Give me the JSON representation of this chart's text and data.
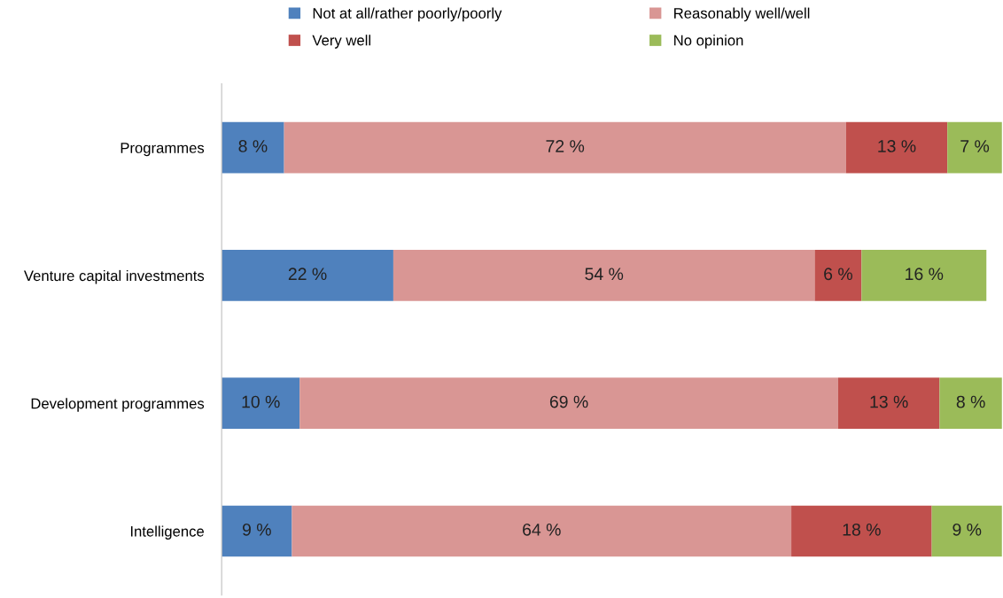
{
  "chart_data": {
    "type": "bar",
    "orientation": "horizontal",
    "stacked": true,
    "categories": [
      "Programmes",
      "Venture capital investments",
      "Development programmes",
      "Intelligence"
    ],
    "series": [
      {
        "name": "Not at all/rather poorly/poorly",
        "color": "#4f81bd",
        "values": [
          8,
          22,
          10,
          9
        ],
        "value_labels": [
          "8 %",
          "22 %",
          "10 %",
          "9 %"
        ]
      },
      {
        "name": "Reasonably well/well",
        "color": "#d99694",
        "values": [
          72,
          54,
          69,
          64
        ],
        "value_labels": [
          "72 %",
          "54 %",
          "69 %",
          "64 %"
        ]
      },
      {
        "name": "Very well",
        "color": "#c0504d",
        "values": [
          13,
          6,
          13,
          18
        ],
        "value_labels": [
          "13 %",
          "6 %",
          "13 %",
          "18 %"
        ]
      },
      {
        "name": "No opinion",
        "color": "#9bbb59",
        "values": [
          7,
          16,
          8,
          9
        ],
        "value_labels": [
          "7 %",
          "16 %",
          "8 %",
          "9 %"
        ]
      }
    ],
    "xlim": [
      0,
      100
    ],
    "tick_labels": "y",
    "legend": "top",
    "grid": false
  }
}
